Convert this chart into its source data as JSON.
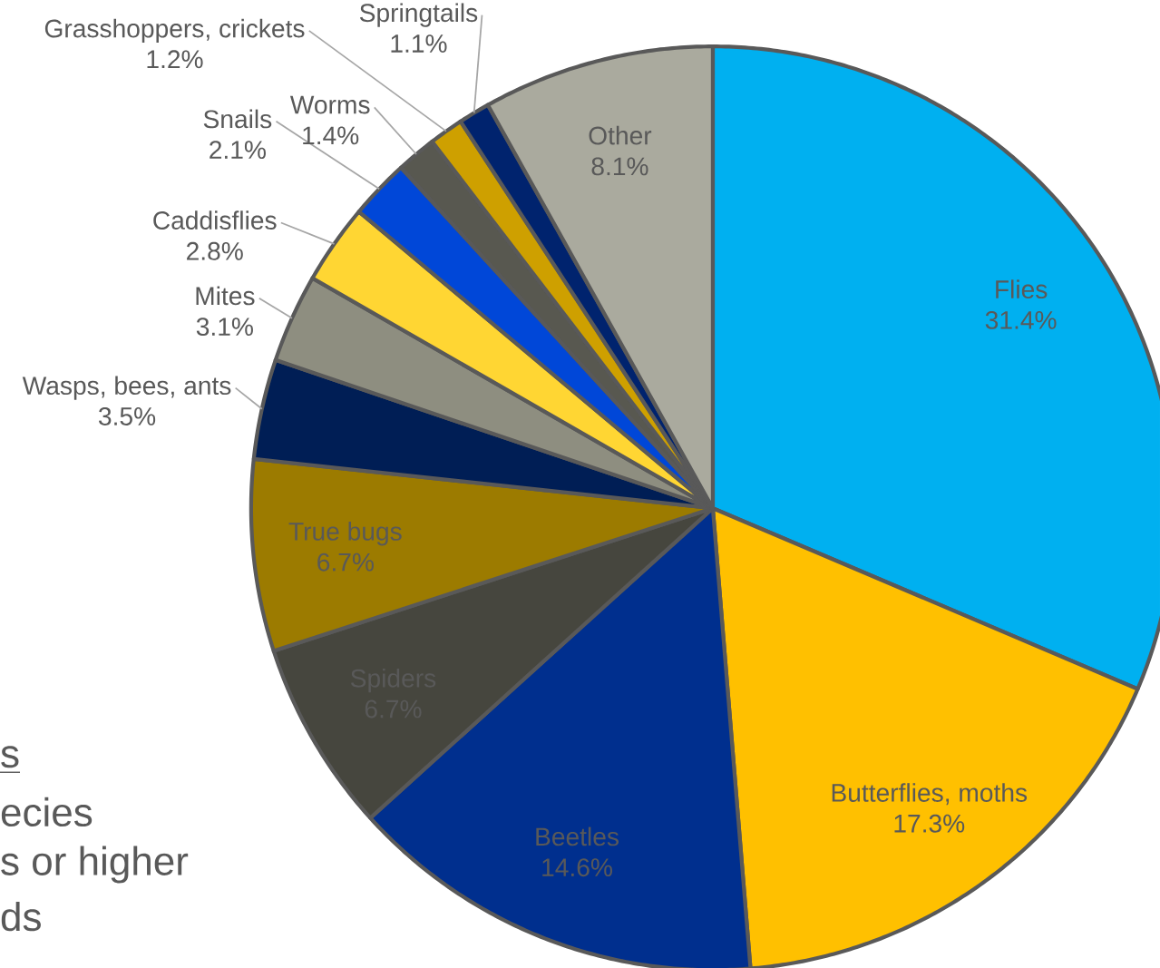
{
  "chart_data": {
    "type": "pie",
    "categories": [
      "Flies",
      "Butterflies, moths",
      "Beetles",
      "Spiders",
      "True bugs",
      "Wasps, bees, ants",
      "Mites",
      "Caddisflies",
      "Snails",
      "Worms",
      "Grasshoppers, crickets",
      "Springtails",
      "Other"
    ],
    "values": [
      31.4,
      17.3,
      14.6,
      6.7,
      6.7,
      3.5,
      3.1,
      2.8,
      2.1,
      1.4,
      1.2,
      1.1,
      8.1
    ],
    "value_labels": [
      "31.4%",
      "17.3%",
      "14.6%",
      "6.7%",
      "6.7%",
      "3.5%",
      "3.1%",
      "2.8%",
      "2.1%",
      "1.4%",
      "1.2%",
      "1.1%",
      "8.1%"
    ],
    "colors": [
      "#00b0f0",
      "#ffc000",
      "#002f8e",
      "#46463e",
      "#9c7b00",
      "#001e55",
      "#8e8e80",
      "#ffd633",
      "#0047d8",
      "#585850",
      "#cea000",
      "#00236e",
      "#aaaa9e"
    ],
    "annotations": [
      "s",
      "ecies",
      "s or higher",
      "ds"
    ]
  }
}
